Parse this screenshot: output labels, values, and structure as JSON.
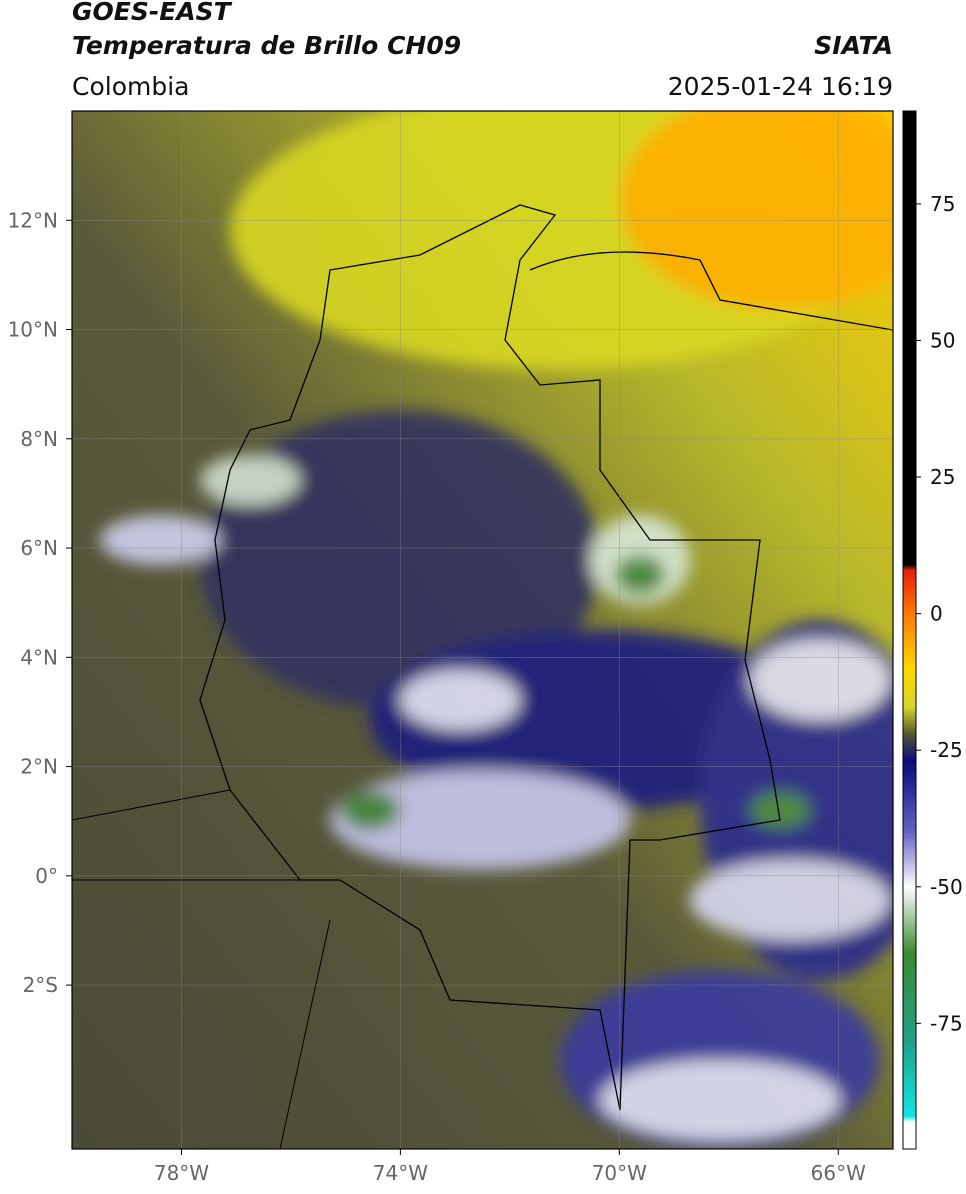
{
  "header": {
    "title": "GOES-EAST",
    "subtitle": "Temperatura de Brillo CH09",
    "source": "SIATA",
    "region": "Colombia",
    "datetime": "2025-01-24 16:19"
  },
  "map": {
    "xlim": [
      -80,
      -65
    ],
    "ylim": [
      -5,
      14
    ],
    "xticks": [
      {
        "value": -78,
        "label": "78°W"
      },
      {
        "value": -74,
        "label": "74°W"
      },
      {
        "value": -70,
        "label": "70°W"
      },
      {
        "value": -66,
        "label": "66°W"
      }
    ],
    "yticks": [
      {
        "value": 12,
        "label": "12°N"
      },
      {
        "value": 10,
        "label": "10°N"
      },
      {
        "value": 8,
        "label": "8°N"
      },
      {
        "value": 6,
        "label": "6°N"
      },
      {
        "value": 4,
        "label": "4°N"
      },
      {
        "value": 2,
        "label": "2°N"
      },
      {
        "value": 0,
        "label": "0°"
      },
      {
        "value": -2,
        "label": "2°S"
      }
    ],
    "grid": true
  },
  "colorbar": {
    "lim": [
      -98,
      92
    ],
    "ticks": [
      75,
      50,
      25,
      0,
      -25,
      -50,
      -75
    ],
    "stops": [
      {
        "value": 92,
        "color": "#000000"
      },
      {
        "value": 9,
        "color": "#000000"
      },
      {
        "value": 8,
        "color": "#e81e0a"
      },
      {
        "value": 0,
        "color": "#ff7a00"
      },
      {
        "value": -10,
        "color": "#ffd800"
      },
      {
        "value": -17,
        "color": "#d6d62a"
      },
      {
        "value": -22,
        "color": "#555533"
      },
      {
        "value": -27,
        "color": "#0a0a7a"
      },
      {
        "value": -40,
        "color": "#6464c4"
      },
      {
        "value": -50,
        "color": "#ffffff"
      },
      {
        "value": -62,
        "color": "#3a8a30"
      },
      {
        "value": -78,
        "color": "#20a088"
      },
      {
        "value": -92,
        "color": "#10e6e6"
      },
      {
        "value": -93,
        "color": "#ffffff"
      },
      {
        "value": -98,
        "color": "#ffffff"
      }
    ]
  }
}
